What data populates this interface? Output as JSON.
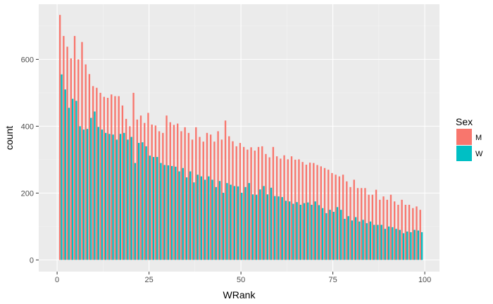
{
  "chart_data": {
    "type": "bar",
    "xlabel": "WRank",
    "ylabel": "count",
    "xlim": [
      -5,
      104
    ],
    "ylim": [
      -35,
      765
    ],
    "x_ticks": [
      0,
      25,
      50,
      75,
      100
    ],
    "y_ticks": [
      0,
      200,
      400,
      600
    ],
    "x_tick_labels": [
      "0",
      "25",
      "50",
      "75",
      "100"
    ],
    "y_tick_labels": [
      "0",
      "200",
      "400",
      "600"
    ],
    "grid": true,
    "legend": {
      "title": "Sex",
      "position": "right"
    },
    "x": [
      1,
      2,
      3,
      4,
      5,
      6,
      7,
      8,
      9,
      10,
      11,
      12,
      13,
      14,
      15,
      16,
      17,
      18,
      19,
      20,
      21,
      22,
      23,
      24,
      25,
      26,
      27,
      28,
      29,
      30,
      31,
      32,
      33,
      34,
      35,
      36,
      37,
      38,
      39,
      40,
      41,
      42,
      43,
      44,
      45,
      46,
      47,
      48,
      49,
      50,
      51,
      52,
      53,
      54,
      55,
      56,
      57,
      58,
      59,
      60,
      61,
      62,
      63,
      64,
      65,
      66,
      67,
      68,
      69,
      70,
      71,
      72,
      73,
      74,
      75,
      76,
      77,
      78,
      79,
      80,
      81,
      82,
      83,
      84,
      85,
      86,
      87,
      88,
      89,
      90,
      91,
      92,
      93,
      94,
      95,
      96,
      97,
      98,
      99
    ],
    "series": [
      {
        "name": "M",
        "color": "#F8766D",
        "values": [
          733,
          670,
          638,
          603,
          670,
          600,
          652,
          585,
          556,
          520,
          515,
          500,
          488,
          485,
          495,
          490,
          490,
          462,
          422,
          400,
          500,
          420,
          432,
          410,
          440,
          405,
          402,
          385,
          380,
          432,
          412,
          404,
          408,
          385,
          397,
          380,
          360,
          397,
          368,
          354,
          380,
          375,
          354,
          385,
          360,
          417,
          370,
          355,
          340,
          350,
          338,
          330,
          337,
          327,
          338,
          340,
          317,
          307,
          338,
          310,
          303,
          313,
          301,
          310,
          300,
          301,
          293,
          285,
          291,
          290,
          284,
          280,
          275,
          270,
          260,
          255,
          250,
          255,
          235,
          218,
          240,
          215,
          215,
          215,
          195,
          195,
          210,
          180,
          190,
          180,
          195,
          175,
          165,
          180,
          165,
          165,
          155,
          160,
          150
        ]
      },
      {
        "name": "W",
        "color": "#00BFC4",
        "values": [
          555,
          510,
          455,
          482,
          476,
          400,
          390,
          392,
          425,
          444,
          398,
          390,
          380,
          377,
          375,
          360,
          377,
          380,
          360,
          368,
          290,
          350,
          352,
          340,
          312,
          308,
          308,
          290,
          284,
          283,
          281,
          279,
          265,
          275,
          247,
          265,
          232,
          255,
          250,
          240,
          250,
          240,
          218,
          236,
          201,
          230,
          225,
          221,
          220,
          201,
          218,
          230,
          196,
          195,
          211,
          221,
          196,
          216,
          191,
          190,
          188,
          177,
          175,
          168,
          173,
          165,
          170,
          172,
          165,
          175,
          164,
          155,
          140,
          150,
          144,
          158,
          150,
          123,
          131,
          118,
          128,
          115,
          120,
          110,
          115,
          105,
          105,
          105,
          93,
          100,
          98,
          93,
          90,
          80,
          85,
          83,
          90,
          88,
          83
        ]
      }
    ]
  }
}
